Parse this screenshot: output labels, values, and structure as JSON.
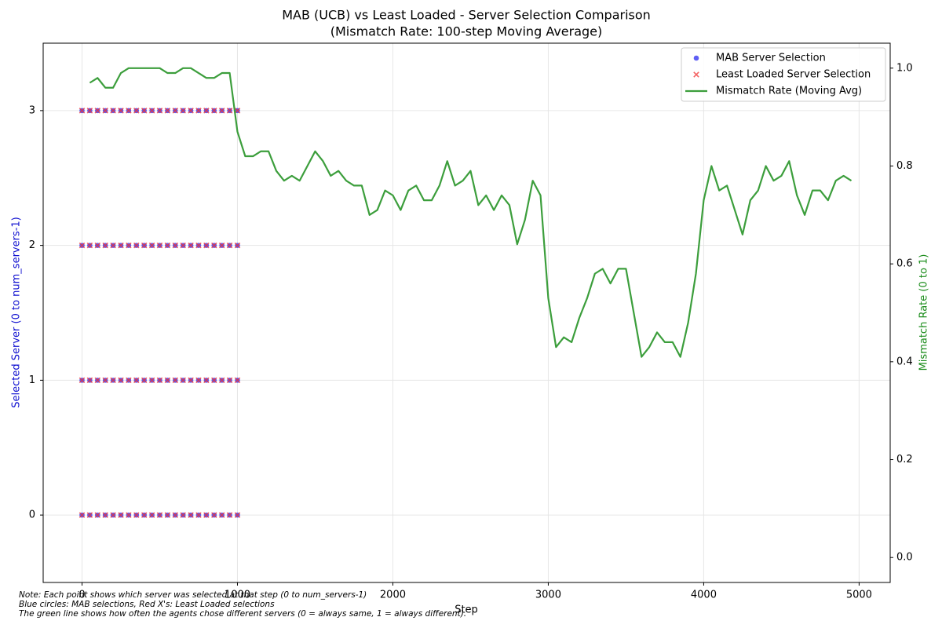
{
  "chart_data": {
    "type": "scatter-line",
    "title": "MAB (UCB) vs Least Loaded - Server Selection Comparison",
    "subtitle": "(Mismatch Rate: 100-step Moving Average)",
    "x_label": "Step",
    "y_label": "Selected Server (0 to num_servers-1)",
    "y2_label": "Mismatch Rate (0 to 1)",
    "notes": [
      "Note: Each point shows which server was selected at that step (0 to num_servers-1)",
      "Blue circles: MAB selections, Red X's: Least Loaded selections",
      "The green line shows how often the agents chose different servers (0 = always same, 1 = always different)."
    ],
    "xlim": [
      -250,
      5200
    ],
    "xticks": [
      0,
      1000,
      2000,
      3000,
      4000,
      5000
    ],
    "ylim": [
      -0.5,
      3.5
    ],
    "yticks": [
      0,
      1,
      2,
      3
    ],
    "y2lim": [
      -0.051,
      1.051
    ],
    "y2ticks": [
      {
        "value": 0,
        "label": "0.0"
      },
      {
        "value": 0.2,
        "label": "0.2"
      },
      {
        "value": 0.4,
        "label": "0.4"
      },
      {
        "value": 0.6,
        "label": "0.6"
      },
      {
        "value": 0.8,
        "label": "0.8"
      },
      {
        "value": 1,
        "label": "1.0"
      }
    ],
    "grid": true,
    "legend": "upper right",
    "series": [
      {
        "name": "MAB Server Selection",
        "color": "#2a2af0",
        "marker": "o",
        "x": [
          0,
          50,
          100,
          150,
          200,
          250,
          300,
          350,
          400,
          450,
          500,
          550,
          600,
          650,
          700,
          750,
          800,
          850,
          900,
          950,
          1000,
          0,
          50,
          100,
          150,
          200,
          250,
          300,
          350,
          400,
          450,
          500,
          550,
          600,
          650,
          700,
          750,
          800,
          850,
          900,
          950,
          1000,
          0,
          50,
          100,
          150,
          200,
          250,
          300,
          350,
          400,
          450,
          500,
          550,
          600,
          650,
          700,
          750,
          800,
          850,
          900,
          950,
          1000,
          0,
          50,
          100,
          150,
          200,
          250,
          300,
          350,
          400,
          450,
          500,
          550,
          600,
          650,
          700,
          750,
          800,
          850,
          900,
          950,
          1000
        ],
        "values": [
          0,
          0,
          0,
          0,
          0,
          0,
          0,
          0,
          0,
          0,
          0,
          0,
          0,
          0,
          0,
          0,
          0,
          0,
          0,
          0,
          0,
          1,
          1,
          1,
          1,
          1,
          1,
          1,
          1,
          1,
          1,
          1,
          1,
          1,
          1,
          1,
          1,
          1,
          1,
          1,
          1,
          1,
          2,
          2,
          2,
          2,
          2,
          2,
          2,
          2,
          2,
          2,
          2,
          2,
          2,
          2,
          2,
          2,
          2,
          2,
          2,
          2,
          2,
          3,
          3,
          3,
          3,
          3,
          3,
          3,
          3,
          3,
          3,
          3,
          3,
          3,
          3,
          3,
          3,
          3,
          3,
          3,
          3,
          3
        ]
      },
      {
        "name": "Least Loaded Server Selection",
        "color": "#f03030",
        "marker": "x",
        "x": [
          0,
          50,
          100,
          150,
          200,
          250,
          300,
          350,
          400,
          450,
          500,
          550,
          600,
          650,
          700,
          750,
          800,
          850,
          900,
          950,
          1000,
          0,
          50,
          100,
          150,
          200,
          250,
          300,
          350,
          400,
          450,
          500,
          550,
          600,
          650,
          700,
          750,
          800,
          850,
          900,
          950,
          1000,
          0,
          50,
          100,
          150,
          200,
          250,
          300,
          350,
          400,
          450,
          500,
          550,
          600,
          650,
          700,
          750,
          800,
          850,
          900,
          950,
          1000,
          0,
          50,
          100,
          150,
          200,
          250,
          300,
          350,
          400,
          450,
          500,
          550,
          600,
          650,
          700,
          750,
          800,
          850,
          900,
          950,
          1000
        ],
        "values": [
          0,
          0,
          0,
          0,
          0,
          0,
          0,
          0,
          0,
          0,
          0,
          0,
          0,
          0,
          0,
          0,
          0,
          0,
          0,
          0,
          0,
          1,
          1,
          1,
          1,
          1,
          1,
          1,
          1,
          1,
          1,
          1,
          1,
          1,
          1,
          1,
          1,
          1,
          1,
          1,
          1,
          1,
          2,
          2,
          2,
          2,
          2,
          2,
          2,
          2,
          2,
          2,
          2,
          2,
          2,
          2,
          2,
          2,
          2,
          2,
          2,
          2,
          2,
          3,
          3,
          3,
          3,
          3,
          3,
          3,
          3,
          3,
          3,
          3,
          3,
          3,
          3,
          3,
          3,
          3,
          3,
          3,
          3,
          3
        ]
      },
      {
        "name": "Mismatch Rate (Moving Avg)",
        "color": "#3c9e3c",
        "axis": "y2",
        "x": [
          50,
          100,
          150,
          200,
          250,
          300,
          350,
          400,
          450,
          500,
          550,
          600,
          650,
          700,
          750,
          800,
          850,
          900,
          950,
          1000,
          1050,
          1100,
          1150,
          1200,
          1250,
          1300,
          1350,
          1400,
          1450,
          1500,
          1550,
          1600,
          1650,
          1700,
          1750,
          1800,
          1850,
          1900,
          1950,
          2000,
          2050,
          2100,
          2150,
          2200,
          2250,
          2300,
          2350,
          2400,
          2450,
          2500,
          2550,
          2600,
          2650,
          2700,
          2750,
          2800,
          2850,
          2900,
          2950,
          3000,
          3050,
          3100,
          3150,
          3200,
          3250,
          3300,
          3350,
          3400,
          3450,
          3500,
          3550,
          3600,
          3650,
          3700,
          3750,
          3800,
          3850,
          3900,
          3950,
          4000,
          4050,
          4100,
          4150,
          4200,
          4250,
          4300,
          4350,
          4400,
          4450,
          4500,
          4550,
          4600,
          4650,
          4700,
          4750,
          4800,
          4850,
          4900,
          4950
        ],
        "values": [
          0.97,
          0.98,
          0.96,
          0.96,
          0.99,
          1.0,
          1.0,
          1.0,
          1.0,
          1.0,
          0.99,
          0.99,
          1.0,
          1.0,
          0.99,
          0.98,
          0.98,
          0.99,
          0.99,
          0.87,
          0.82,
          0.82,
          0.83,
          0.83,
          0.79,
          0.77,
          0.78,
          0.77,
          0.8,
          0.83,
          0.81,
          0.78,
          0.79,
          0.77,
          0.76,
          0.76,
          0.7,
          0.71,
          0.75,
          0.74,
          0.71,
          0.75,
          0.76,
          0.73,
          0.73,
          0.76,
          0.81,
          0.76,
          0.77,
          0.79,
          0.72,
          0.74,
          0.71,
          0.74,
          0.72,
          0.64,
          0.69,
          0.77,
          0.74,
          0.53,
          0.43,
          0.45,
          0.44,
          0.49,
          0.53,
          0.58,
          0.59,
          0.56,
          0.59,
          0.59,
          0.5,
          0.41,
          0.43,
          0.46,
          0.44,
          0.44,
          0.41,
          0.48,
          0.58,
          0.73,
          0.8,
          0.75,
          0.76,
          0.71,
          0.66,
          0.73,
          0.75,
          0.8,
          0.77,
          0.78,
          0.81,
          0.74,
          0.7,
          0.75,
          0.75,
          0.73,
          0.77,
          0.78,
          0.77
        ]
      }
    ]
  }
}
